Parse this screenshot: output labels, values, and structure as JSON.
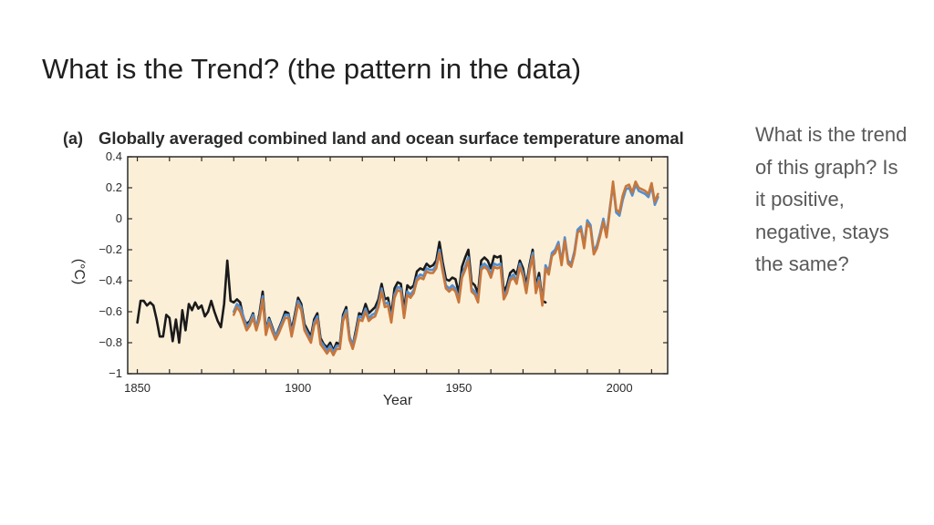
{
  "slide": {
    "title": "What is the Trend? (the pattern in the data)",
    "question": "What is the trend of this graph? Is it positive, negative, stays the same?"
  },
  "colors": {
    "plot_background": "#fcefd8",
    "series_1": "#1a1a1a",
    "series_2": "#4f8fd4",
    "series_3": "#c8763a"
  },
  "chart_data": {
    "type": "line",
    "panel_label": "(a)",
    "title": "Globally averaged combined land and ocean surface temperature anomaly",
    "xlabel": "Year",
    "ylabel": "(°C)",
    "xlim": [
      1847,
      2015
    ],
    "ylim": [
      -1,
      0.4
    ],
    "xticks": [
      1850,
      1900,
      1950,
      2000
    ],
    "yticks": [
      {
        "value": 0.4,
        "label": "0.4"
      },
      {
        "value": 0.2,
        "label": "0.2"
      },
      {
        "value": 0,
        "label": "0"
      },
      {
        "value": -0.2,
        "label": "−0.2"
      },
      {
        "value": -0.4,
        "label": "−0.4"
      },
      {
        "value": -0.6,
        "label": "−0.6"
      },
      {
        "value": -0.8,
        "label": "−0.8"
      },
      {
        "value": -1,
        "label": "−1"
      }
    ],
    "grid": false,
    "series": [
      {
        "x": [
          1850,
          1851,
          1852,
          1853,
          1854,
          1855,
          1856,
          1857,
          1858,
          1859,
          1860,
          1861,
          1862,
          1863,
          1864,
          1865,
          1866,
          1867,
          1868,
          1869,
          1870,
          1871,
          1872,
          1873,
          1874,
          1875,
          1876,
          1877,
          1878,
          1879,
          1880,
          1881,
          1882,
          1883,
          1884,
          1885,
          1886,
          1887,
          1888,
          1889,
          1890,
          1891,
          1892,
          1893,
          1894,
          1895,
          1896,
          1897,
          1898,
          1899,
          1900,
          1901,
          1902,
          1903,
          1904,
          1905,
          1906,
          1907,
          1908,
          1909,
          1910,
          1911,
          1912,
          1913,
          1914,
          1915,
          1916,
          1917,
          1918,
          1919,
          1920,
          1921,
          1922,
          1923,
          1924,
          1925,
          1926,
          1927,
          1928,
          1929,
          1930,
          1931,
          1932,
          1933,
          1934,
          1935,
          1936,
          1937,
          1938,
          1939,
          1940,
          1941,
          1942,
          1943,
          1944,
          1945,
          1946,
          1947,
          1948,
          1949,
          1950,
          1951,
          1952,
          1953,
          1954,
          1955,
          1956,
          1957,
          1958,
          1959,
          1960,
          1961,
          1962,
          1963,
          1964,
          1965,
          1966,
          1967,
          1968,
          1969,
          1970,
          1971,
          1972,
          1973,
          1974,
          1975,
          1976,
          1977
        ],
        "values": [
          -0.67,
          -0.53,
          -0.53,
          -0.56,
          -0.54,
          -0.56,
          -0.65,
          -0.76,
          -0.76,
          -0.62,
          -0.64,
          -0.79,
          -0.65,
          -0.8,
          -0.59,
          -0.72,
          -0.55,
          -0.59,
          -0.54,
          -0.58,
          -0.56,
          -0.63,
          -0.6,
          -0.53,
          -0.6,
          -0.66,
          -0.7,
          -0.55,
          -0.27,
          -0.53,
          -0.54,
          -0.52,
          -0.54,
          -0.64,
          -0.68,
          -0.66,
          -0.61,
          -0.71,
          -0.61,
          -0.47,
          -0.72,
          -0.64,
          -0.7,
          -0.76,
          -0.71,
          -0.66,
          -0.6,
          -0.61,
          -0.72,
          -0.62,
          -0.51,
          -0.55,
          -0.68,
          -0.72,
          -0.76,
          -0.65,
          -0.61,
          -0.77,
          -0.81,
          -0.83,
          -0.8,
          -0.85,
          -0.8,
          -0.81,
          -0.62,
          -0.57,
          -0.76,
          -0.82,
          -0.72,
          -0.61,
          -0.62,
          -0.55,
          -0.61,
          -0.59,
          -0.57,
          -0.52,
          -0.42,
          -0.52,
          -0.51,
          -0.62,
          -0.45,
          -0.41,
          -0.42,
          -0.59,
          -0.43,
          -0.45,
          -0.43,
          -0.34,
          -0.32,
          -0.33,
          -0.29,
          -0.31,
          -0.3,
          -0.27,
          -0.15,
          -0.28,
          -0.39,
          -0.4,
          -0.38,
          -0.39,
          -0.48,
          -0.31,
          -0.25,
          -0.2,
          -0.41,
          -0.43,
          -0.48,
          -0.27,
          -0.25,
          -0.27,
          -0.32,
          -0.24,
          -0.25,
          -0.24,
          -0.47,
          -0.43,
          -0.35,
          -0.33,
          -0.36,
          -0.27,
          -0.32,
          -0.43,
          -0.3,
          -0.2,
          -0.44,
          -0.35,
          -0.53,
          -0.54
        ]
      },
      {
        "x": [
          1880,
          1881,
          1882,
          1883,
          1884,
          1885,
          1886,
          1887,
          1888,
          1889,
          1890,
          1891,
          1892,
          1893,
          1894,
          1895,
          1896,
          1897,
          1898,
          1899,
          1900,
          1901,
          1902,
          1903,
          1904,
          1905,
          1906,
          1907,
          1908,
          1909,
          1910,
          1911,
          1912,
          1913,
          1914,
          1915,
          1916,
          1917,
          1918,
          1919,
          1920,
          1921,
          1922,
          1923,
          1924,
          1925,
          1926,
          1927,
          1928,
          1929,
          1930,
          1931,
          1932,
          1933,
          1934,
          1935,
          1936,
          1937,
          1938,
          1939,
          1940,
          1941,
          1942,
          1943,
          1944,
          1945,
          1946,
          1947,
          1948,
          1949,
          1950,
          1951,
          1952,
          1953,
          1954,
          1955,
          1956,
          1957,
          1958,
          1959,
          1960,
          1961,
          1962,
          1963,
          1964,
          1965,
          1966,
          1967,
          1968,
          1969,
          1970,
          1971,
          1972,
          1973,
          1974,
          1975,
          1976,
          1977,
          1978,
          1979,
          1980,
          1981,
          1982,
          1983,
          1984,
          1985,
          1986,
          1987,
          1988,
          1989,
          1990,
          1991,
          1992,
          1993,
          1994,
          1995,
          1996,
          1997,
          1998,
          1999,
          2000,
          2001,
          2002,
          2003,
          2004,
          2005,
          2006,
          2007,
          2008,
          2009,
          2010,
          2011,
          2012
        ],
        "values": [
          -0.6,
          -0.55,
          -0.57,
          -0.63,
          -0.7,
          -0.67,
          -0.62,
          -0.7,
          -0.63,
          -0.5,
          -0.73,
          -0.65,
          -0.71,
          -0.76,
          -0.72,
          -0.67,
          -0.62,
          -0.62,
          -0.74,
          -0.64,
          -0.53,
          -0.57,
          -0.7,
          -0.74,
          -0.78,
          -0.67,
          -0.63,
          -0.79,
          -0.82,
          -0.85,
          -0.82,
          -0.86,
          -0.82,
          -0.82,
          -0.64,
          -0.59,
          -0.76,
          -0.82,
          -0.74,
          -0.63,
          -0.64,
          -0.58,
          -0.64,
          -0.62,
          -0.61,
          -0.55,
          -0.45,
          -0.55,
          -0.54,
          -0.65,
          -0.49,
          -0.44,
          -0.45,
          -0.62,
          -0.47,
          -0.49,
          -0.46,
          -0.38,
          -0.36,
          -0.37,
          -0.32,
          -0.33,
          -0.33,
          -0.3,
          -0.2,
          -0.32,
          -0.43,
          -0.45,
          -0.43,
          -0.45,
          -0.52,
          -0.36,
          -0.31,
          -0.25,
          -0.45,
          -0.47,
          -0.52,
          -0.31,
          -0.29,
          -0.31,
          -0.36,
          -0.29,
          -0.3,
          -0.29,
          -0.5,
          -0.46,
          -0.38,
          -0.36,
          -0.4,
          -0.29,
          -0.35,
          -0.46,
          -0.32,
          -0.22,
          -0.46,
          -0.38,
          -0.54,
          -0.3,
          -0.34,
          -0.22,
          -0.2,
          -0.15,
          -0.28,
          -0.12,
          -0.27,
          -0.29,
          -0.21,
          -0.07,
          -0.05,
          -0.17,
          -0.01,
          -0.04,
          -0.21,
          -0.17,
          -0.09,
          0.0,
          -0.1,
          0.07,
          0.22,
          0.04,
          0.02,
          0.12,
          0.19,
          0.2,
          0.15,
          0.22,
          0.18,
          0.17,
          0.16,
          0.14,
          0.21,
          0.09,
          0.14
        ]
      },
      {
        "x": [
          1880,
          1881,
          1882,
          1883,
          1884,
          1885,
          1886,
          1887,
          1888,
          1889,
          1890,
          1891,
          1892,
          1893,
          1894,
          1895,
          1896,
          1897,
          1898,
          1899,
          1900,
          1901,
          1902,
          1903,
          1904,
          1905,
          1906,
          1907,
          1908,
          1909,
          1910,
          1911,
          1912,
          1913,
          1914,
          1915,
          1916,
          1917,
          1918,
          1919,
          1920,
          1921,
          1922,
          1923,
          1924,
          1925,
          1926,
          1927,
          1928,
          1929,
          1930,
          1931,
          1932,
          1933,
          1934,
          1935,
          1936,
          1937,
          1938,
          1939,
          1940,
          1941,
          1942,
          1943,
          1944,
          1945,
          1946,
          1947,
          1948,
          1949,
          1950,
          1951,
          1952,
          1953,
          1954,
          1955,
          1956,
          1957,
          1958,
          1959,
          1960,
          1961,
          1962,
          1963,
          1964,
          1965,
          1966,
          1967,
          1968,
          1969,
          1970,
          1971,
          1972,
          1973,
          1974,
          1975,
          1976,
          1977,
          1978,
          1979,
          1980,
          1981,
          1982,
          1983,
          1984,
          1985,
          1986,
          1987,
          1988,
          1989,
          1990,
          1991,
          1992,
          1993,
          1994,
          1995,
          1996,
          1997,
          1998,
          1999,
          2000,
          2001,
          2002,
          2003,
          2004,
          2005,
          2006,
          2007,
          2008,
          2009,
          2010,
          2011,
          2012
        ],
        "values": [
          -0.62,
          -0.57,
          -0.6,
          -0.66,
          -0.72,
          -0.69,
          -0.64,
          -0.72,
          -0.65,
          -0.52,
          -0.75,
          -0.67,
          -0.73,
          -0.78,
          -0.74,
          -0.69,
          -0.64,
          -0.64,
          -0.76,
          -0.66,
          -0.55,
          -0.59,
          -0.72,
          -0.76,
          -0.8,
          -0.69,
          -0.65,
          -0.81,
          -0.84,
          -0.87,
          -0.84,
          -0.88,
          -0.84,
          -0.84,
          -0.66,
          -0.61,
          -0.78,
          -0.84,
          -0.76,
          -0.65,
          -0.66,
          -0.6,
          -0.66,
          -0.64,
          -0.63,
          -0.57,
          -0.47,
          -0.57,
          -0.56,
          -0.67,
          -0.51,
          -0.46,
          -0.47,
          -0.64,
          -0.49,
          -0.51,
          -0.48,
          -0.4,
          -0.38,
          -0.39,
          -0.34,
          -0.35,
          -0.35,
          -0.32,
          -0.22,
          -0.34,
          -0.45,
          -0.47,
          -0.45,
          -0.47,
          -0.54,
          -0.38,
          -0.33,
          -0.27,
          -0.47,
          -0.49,
          -0.54,
          -0.33,
          -0.31,
          -0.33,
          -0.38,
          -0.31,
          -0.32,
          -0.31,
          -0.52,
          -0.48,
          -0.4,
          -0.38,
          -0.42,
          -0.31,
          -0.37,
          -0.48,
          -0.34,
          -0.24,
          -0.48,
          -0.4,
          -0.56,
          -0.32,
          -0.36,
          -0.24,
          -0.22,
          -0.17,
          -0.3,
          -0.14,
          -0.29,
          -0.31,
          -0.23,
          -0.09,
          -0.07,
          -0.19,
          -0.03,
          -0.06,
          -0.23,
          -0.19,
          -0.11,
          -0.02,
          -0.12,
          0.05,
          0.24,
          0.06,
          0.04,
          0.15,
          0.21,
          0.22,
          0.17,
          0.24,
          0.2,
          0.19,
          0.18,
          0.16,
          0.23,
          0.11,
          0.16
        ]
      }
    ]
  }
}
